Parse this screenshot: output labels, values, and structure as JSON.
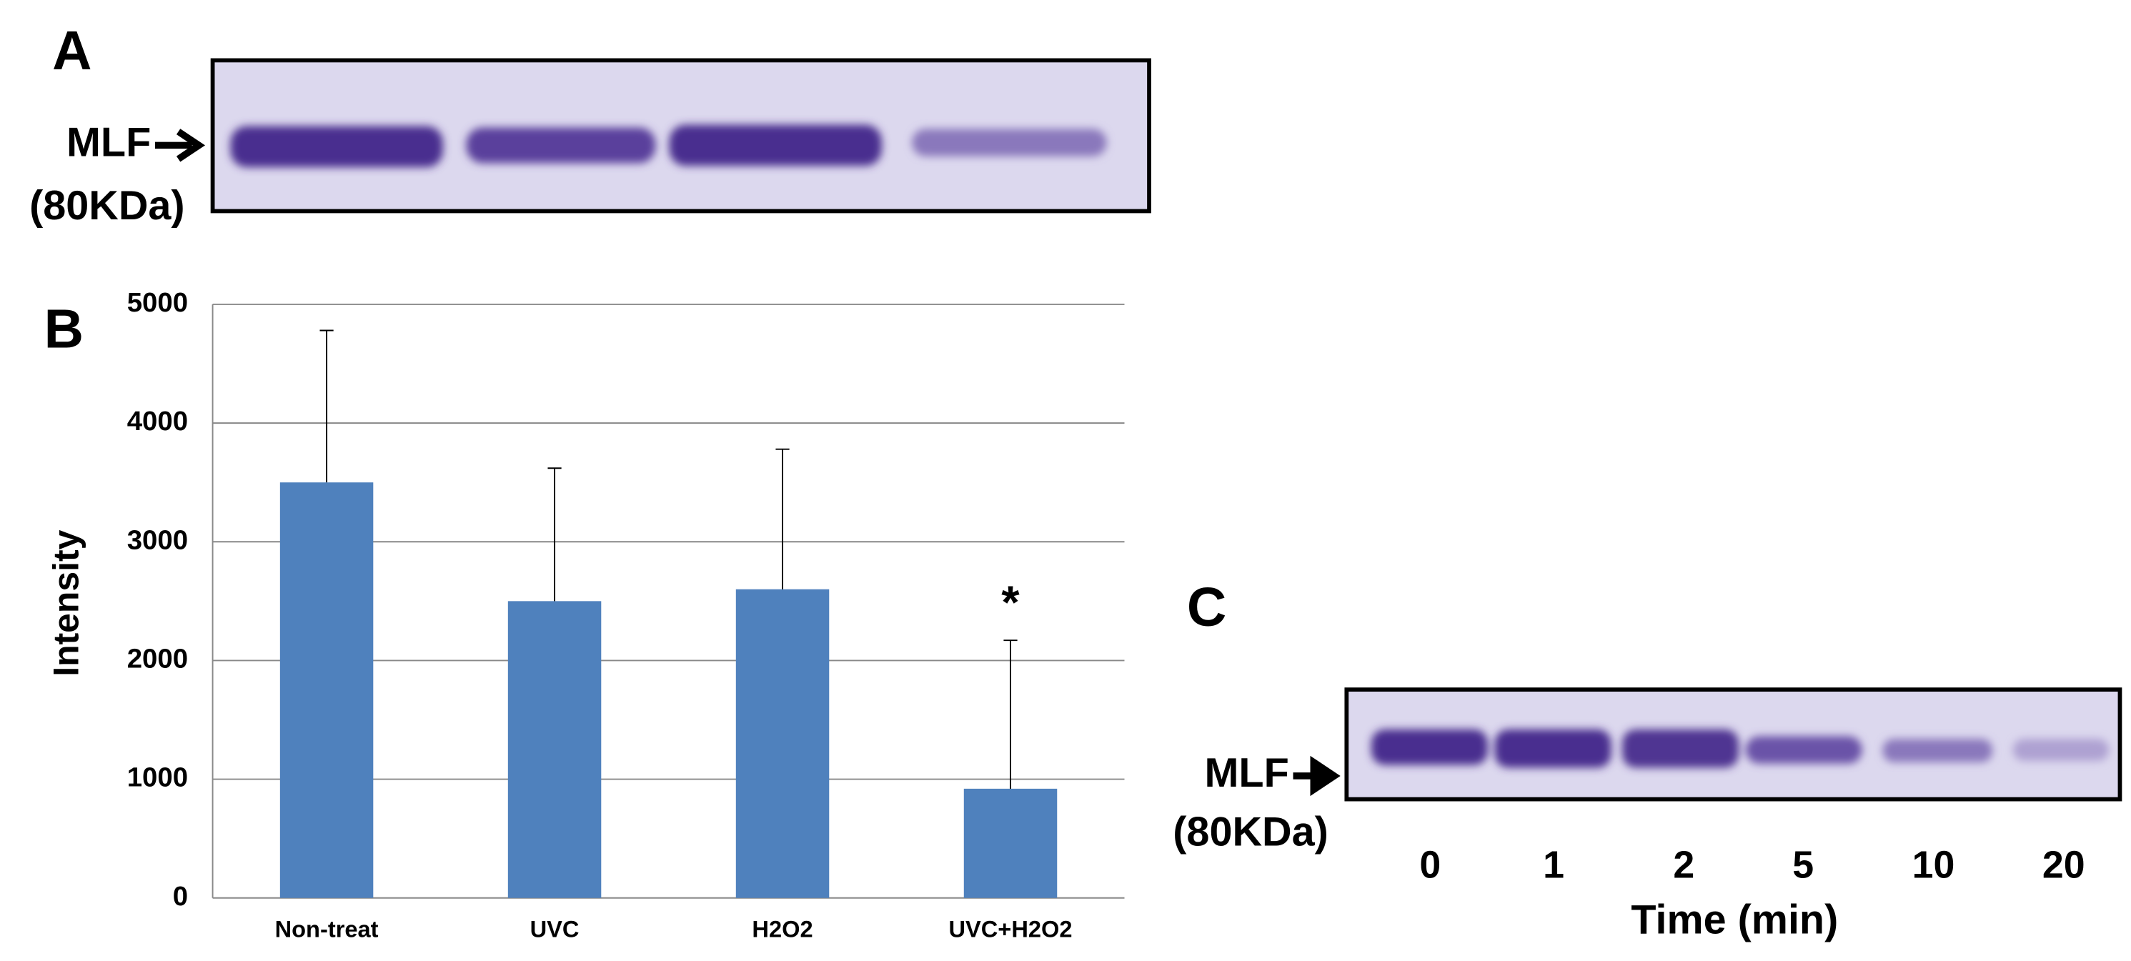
{
  "panel_a": {
    "label": "A",
    "marker": "MLF",
    "size": "(80KDa)"
  },
  "panel_c": {
    "label": "C",
    "marker": "MLF",
    "size": "(80KDa)",
    "lanes": [
      "0",
      "1",
      "2",
      "5",
      "10",
      "20"
    ],
    "xlabel": "Time (min)"
  },
  "chart_data": {
    "type": "bar",
    "label": "B",
    "ylabel": "Intensity",
    "categories": [
      "Non-treat",
      "UVC",
      "H2O2",
      "UVC+H2O2"
    ],
    "values": [
      3500,
      2500,
      2600,
      920
    ],
    "errors": [
      1280,
      1120,
      1180,
      1250
    ],
    "color": "#4f81bd",
    "ylim": [
      0,
      5000
    ],
    "yticks": [
      0,
      1000,
      2000,
      3000,
      4000,
      5000
    ],
    "grid": true,
    "annotation": "*"
  }
}
